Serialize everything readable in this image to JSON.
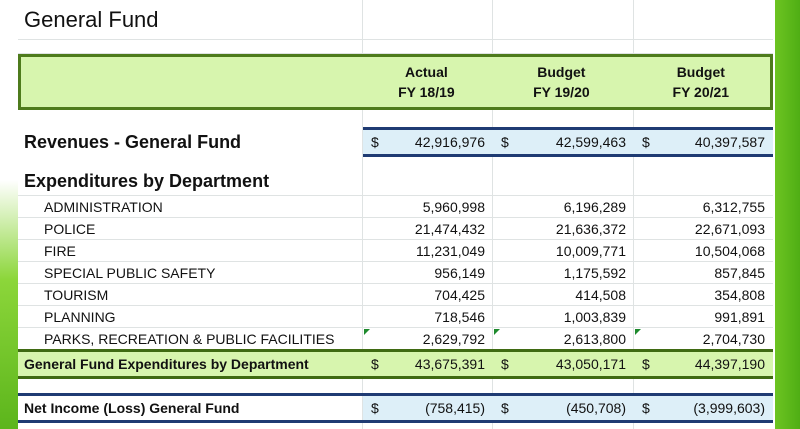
{
  "title": "General Fund",
  "header": {
    "col1": [
      "Actual",
      "FY 18/19"
    ],
    "col2": [
      "Budget",
      "FY 19/20"
    ],
    "col3": [
      "Budget",
      "FY 20/21"
    ]
  },
  "currency": "$",
  "revenues": {
    "label": "Revenues - General Fund",
    "values": [
      "42,916,976",
      "42,599,463",
      "40,397,587"
    ]
  },
  "expenditures_heading": "Expenditures by Department",
  "departments": [
    {
      "label": "ADMINISTRATION",
      "values": [
        "5,960,998",
        "6,196,289",
        "6,312,755"
      ]
    },
    {
      "label": "POLICE",
      "values": [
        "21,474,432",
        "21,636,372",
        "22,671,093"
      ]
    },
    {
      "label": "FIRE",
      "values": [
        "11,231,049",
        "10,009,771",
        "10,504,068"
      ]
    },
    {
      "label": "SPECIAL PUBLIC SAFETY",
      "values": [
        "956,149",
        "1,175,592",
        "857,845"
      ]
    },
    {
      "label": "TOURISM",
      "values": [
        "704,425",
        "414,508",
        "354,808"
      ]
    },
    {
      "label": "PLANNING",
      "values": [
        "718,546",
        "1,003,839",
        "991,891"
      ]
    },
    {
      "label": "PARKS, RECREATION & PUBLIC FACILITIES",
      "values": [
        "2,629,792",
        "2,613,800",
        "2,704,730"
      ]
    }
  ],
  "total": {
    "label": "General Fund Expenditures by Department",
    "values": [
      "43,675,391",
      "43,050,171",
      "44,397,190"
    ]
  },
  "net": {
    "label": "Net Income (Loss) General Fund",
    "values": [
      "(758,415)",
      "(450,708)",
      "(3,999,603)"
    ]
  },
  "colors": {
    "header_fill": "#d7f5ae",
    "header_border": "#4e7b1c",
    "blue_fill": "#ddeff8",
    "blue_rule": "#1f3b73",
    "accent_green": "#5cb51c"
  }
}
